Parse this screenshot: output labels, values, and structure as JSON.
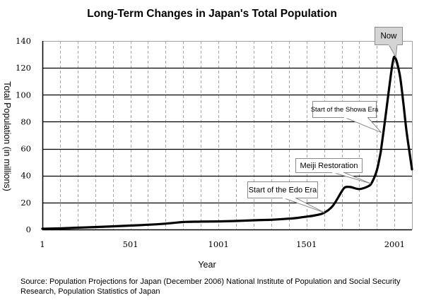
{
  "chart_data": {
    "type": "line",
    "title": "Long-Term Changes in Japan's Total Population",
    "xlabel": "Year",
    "ylabel": "Total Population (in millions)",
    "xlim": [
      1,
      2100
    ],
    "ylim": [
      0,
      140
    ],
    "x_ticks": [
      1,
      501,
      1001,
      1501,
      2001
    ],
    "x_tick_labels": [
      "1",
      "501",
      "1001",
      "1501",
      "2001"
    ],
    "x_minor_gridlines_every": 100,
    "y_ticks": [
      0,
      20,
      40,
      60,
      80,
      100,
      120,
      140
    ],
    "y_tick_labels": [
      "0",
      "20",
      "40",
      "60",
      "80",
      "100",
      "120",
      "140"
    ],
    "grid": {
      "y": "solid",
      "x": "dashed"
    },
    "legend": "none",
    "series": [
      {
        "name": "Total Population",
        "color": "#000000",
        "x": [
          1,
          100,
          200,
          300,
          400,
          500,
          600,
          700,
          800,
          900,
          1000,
          1100,
          1200,
          1300,
          1400,
          1450,
          1500,
          1550,
          1600,
          1650,
          1700,
          1720,
          1750,
          1800,
          1850,
          1872,
          1900,
          1920,
          1926,
          1950,
          1970,
          1990,
          2004,
          2030,
          2050,
          2070,
          2100
        ],
        "values": [
          0.5,
          0.8,
          1.3,
          1.8,
          2.3,
          2.9,
          3.5,
          4.3,
          5.5,
          5.8,
          6.0,
          6.3,
          6.8,
          7.2,
          8.0,
          8.6,
          9.5,
          10.5,
          12.3,
          17.5,
          28.0,
          31.3,
          31.5,
          30.0,
          32.0,
          34.8,
          43.8,
          55.9,
          60.7,
          84.1,
          104.7,
          123.6,
          127.8,
          115.2,
          95.2,
          72.0,
          44.6
        ]
      }
    ],
    "annotations": [
      {
        "text": "Start of the Edo Era",
        "x": 1603,
        "y": 12.5,
        "style": "white-box"
      },
      {
        "text": "Meiji Restoration",
        "x": 1868,
        "y": 34.0,
        "style": "white-box"
      },
      {
        "text": "Start of the Showa Era",
        "x": 1926,
        "y": 72.0,
        "style": "white-box"
      },
      {
        "text": "Now",
        "x": 2008,
        "y": 128.0,
        "style": "gray-box"
      }
    ],
    "colors": {
      "line": "#000000",
      "grid_major": "#000000",
      "grid_minor": "#a8a8a8",
      "frame": "#a0a0a0",
      "now_box_fill": "#d4d4d4",
      "callout_border": "#8a8a8a"
    }
  },
  "source_note": "Source: Population Projections for Japan (December 2006) National Institute of Population and Social Security Research, Population Statistics of Japan"
}
